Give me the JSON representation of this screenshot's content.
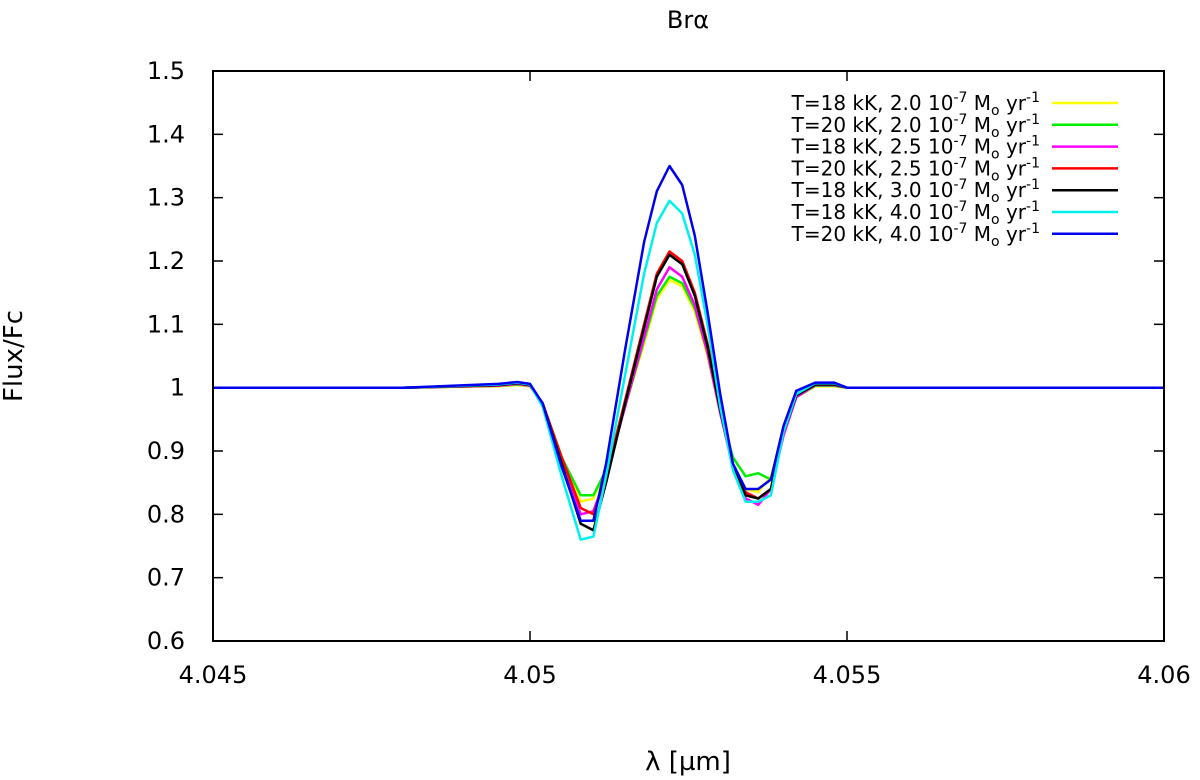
{
  "chart_data": {
    "type": "line",
    "title": "Brα",
    "xlabel": "λ [µm]",
    "ylabel": "Flux/Fc",
    "xlim": [
      4.045,
      4.06
    ],
    "ylim": [
      0.6,
      1.5
    ],
    "x_ticks": [
      4.045,
      4.05,
      4.055,
      4.06
    ],
    "x_tick_labels": [
      "4.045",
      "4.05",
      "4.055",
      "4.06"
    ],
    "y_ticks": [
      0.6,
      0.7,
      0.8,
      0.9,
      1.0,
      1.1,
      1.2,
      1.3,
      1.4,
      1.5
    ],
    "y_tick_labels": [
      "0.6",
      "0.7",
      "0.8",
      "0.9",
      "1",
      "1.1",
      "1.2",
      "1.3",
      "1.4",
      "1.5"
    ],
    "grid": false,
    "legend_position": "top-right",
    "x": [
      4.045,
      4.048,
      4.0495,
      4.0498,
      4.05,
      4.0502,
      4.0505,
      4.0508,
      4.051,
      4.0512,
      4.0515,
      4.0518,
      4.052,
      4.0522,
      4.0524,
      4.0526,
      4.0528,
      4.053,
      4.0532,
      4.0534,
      4.0536,
      4.0538,
      4.054,
      4.0542,
      4.0545,
      4.0548,
      4.055,
      4.0555,
      4.056,
      4.06
    ],
    "series": [
      {
        "name": "T=18 kK, 2.0 10-7 Mo yr-1",
        "color": "#ffff00",
        "values": [
          1.0,
          1.0,
          1.002,
          1.004,
          1.002,
          0.975,
          0.89,
          0.82,
          0.825,
          0.87,
          0.97,
          1.07,
          1.14,
          1.17,
          1.16,
          1.12,
          1.05,
          0.96,
          0.88,
          0.84,
          0.835,
          0.86,
          0.93,
          0.985,
          1.002,
          1.002,
          1.0,
          1.0,
          1.0,
          1.0
        ]
      },
      {
        "name": "T=20 kK, 2.0 10-7 Mo yr-1",
        "color": "#00ee00",
        "values": [
          1.0,
          1.0,
          1.003,
          1.005,
          1.003,
          0.975,
          0.89,
          0.83,
          0.83,
          0.87,
          0.97,
          1.075,
          1.145,
          1.175,
          1.165,
          1.125,
          1.055,
          0.965,
          0.89,
          0.86,
          0.865,
          0.855,
          0.93,
          0.985,
          1.003,
          1.003,
          1.0,
          1.0,
          1.0,
          1.0
        ]
      },
      {
        "name": "T=18 kK, 2.5 10-7 Mo yr-1",
        "color": "#ff00ff",
        "values": [
          1.0,
          1.0,
          1.003,
          1.006,
          1.003,
          0.975,
          0.88,
          0.8,
          0.805,
          0.86,
          0.97,
          1.08,
          1.155,
          1.19,
          1.175,
          1.13,
          1.055,
          0.96,
          0.875,
          0.825,
          0.815,
          0.84,
          0.925,
          0.985,
          1.004,
          1.004,
          1.0,
          1.0,
          1.0,
          1.0
        ]
      },
      {
        "name": "T=20 kK, 2.5 10-7 Mo yr-1",
        "color": "#ff0000",
        "values": [
          1.0,
          1.0,
          1.004,
          1.007,
          1.004,
          0.975,
          0.89,
          0.81,
          0.8,
          0.86,
          0.98,
          1.1,
          1.18,
          1.215,
          1.2,
          1.15,
          1.07,
          0.97,
          0.88,
          0.835,
          0.825,
          0.84,
          0.93,
          0.988,
          1.005,
          1.005,
          1.0,
          1.0,
          1.0,
          1.0
        ]
      },
      {
        "name": "T=18 kK, 3.0 10-7 Mo yr-1",
        "color": "#000000",
        "values": [
          1.0,
          1.0,
          1.004,
          1.007,
          1.004,
          0.975,
          0.88,
          0.785,
          0.775,
          0.85,
          0.975,
          1.095,
          1.175,
          1.21,
          1.195,
          1.145,
          1.065,
          0.965,
          0.875,
          0.83,
          0.825,
          0.84,
          0.93,
          0.988,
          1.005,
          1.005,
          1.0,
          1.0,
          1.0,
          1.0
        ]
      },
      {
        "name": "T=18 kK, 4.0 10-7 Mo yr-1",
        "color": "#00f0f0",
        "values": [
          1.0,
          1.0,
          1.005,
          1.008,
          1.005,
          0.97,
          0.86,
          0.76,
          0.765,
          0.86,
          1.02,
          1.18,
          1.26,
          1.295,
          1.275,
          1.21,
          1.1,
          0.97,
          0.87,
          0.82,
          0.82,
          0.83,
          0.93,
          0.99,
          1.007,
          1.007,
          1.0,
          1.0,
          1.0,
          1.0
        ]
      },
      {
        "name": "T=20 kK, 4.0 10-7 Mo yr-1",
        "color": "#0000ee",
        "values": [
          1.0,
          1.0,
          1.006,
          1.009,
          1.006,
          0.975,
          0.875,
          0.79,
          0.79,
          0.88,
          1.06,
          1.23,
          1.31,
          1.35,
          1.32,
          1.24,
          1.12,
          0.99,
          0.88,
          0.84,
          0.84,
          0.855,
          0.94,
          0.995,
          1.008,
          1.008,
          1.0,
          1.0,
          1.0,
          1.0
        ]
      }
    ],
    "legend_entries": [
      {
        "main": "T=18 kK, 2.0 10",
        "exp": "-7",
        "mid": " M",
        "sub": "o",
        "tail": " yr",
        "exp2": "-1"
      },
      {
        "main": "T=20 kK, 2.0 10",
        "exp": "-7",
        "mid": " M",
        "sub": "o",
        "tail": " yr",
        "exp2": "-1"
      },
      {
        "main": "T=18 kK, 2.5 10",
        "exp": "-7",
        "mid": " M",
        "sub": "o",
        "tail": " yr",
        "exp2": "-1"
      },
      {
        "main": "T=20 kK, 2.5 10",
        "exp": "-7",
        "mid": " M",
        "sub": "o",
        "tail": " yr",
        "exp2": "-1"
      },
      {
        "main": "T=18 kK, 3.0 10",
        "exp": "-7",
        "mid": " M",
        "sub": "o",
        "tail": " yr",
        "exp2": "-1"
      },
      {
        "main": "T=18 kK, 4.0 10",
        "exp": "-7",
        "mid": " M",
        "sub": "o",
        "tail": " yr",
        "exp2": "-1"
      },
      {
        "main": "T=20 kK, 4.0 10",
        "exp": "-7",
        "mid": " M",
        "sub": "o",
        "tail": " yr",
        "exp2": "-1"
      }
    ]
  }
}
